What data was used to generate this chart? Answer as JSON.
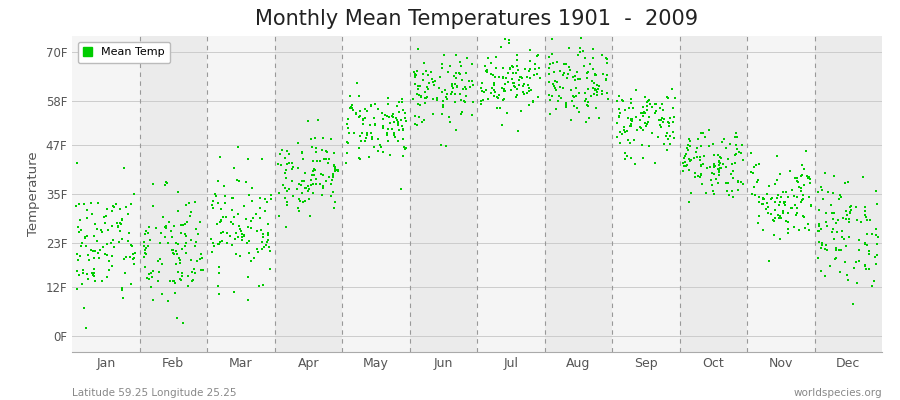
{
  "title": "Monthly Mean Temperatures 1901  -  2009",
  "ylabel": "Temperature",
  "subtitle_left": "Latitude 59.25 Longitude 25.25",
  "subtitle_right": "worldspecies.org",
  "ytick_labels": [
    "0F",
    "12F",
    "23F",
    "35F",
    "47F",
    "58F",
    "70F"
  ],
  "ytick_values": [
    0,
    12,
    23,
    35,
    47,
    58,
    70
  ],
  "months": [
    "Jan",
    "Feb",
    "Mar",
    "Apr",
    "May",
    "Jun",
    "Jul",
    "Aug",
    "Sep",
    "Oct",
    "Nov",
    "Dec"
  ],
  "dot_color": "#00cc00",
  "dot_size": 3,
  "background_color": "#ffffff",
  "band_colors": [
    "#f5f5f5",
    "#ebebeb"
  ],
  "title_fontsize": 15,
  "legend_label": "Mean Temp",
  "mean_temps_C": [
    -5.5,
    -6.5,
    -2.5,
    4.5,
    11.0,
    15.5,
    17.5,
    16.5,
    11.5,
    6.0,
    1.0,
    -3.5
  ],
  "std_temps_C": [
    4.2,
    4.5,
    3.8,
    2.8,
    2.5,
    2.5,
    2.5,
    2.5,
    2.5,
    2.5,
    3.0,
    3.8
  ],
  "n_years": 109,
  "ylim_min": -4,
  "ylim_max": 74
}
